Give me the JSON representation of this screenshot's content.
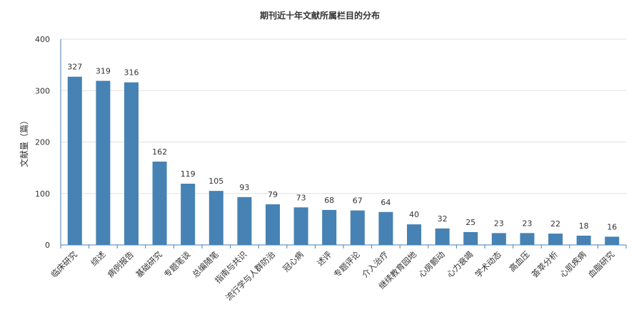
{
  "chart_data": {
    "type": "bar",
    "title": "期刊近十年文献所属栏目的分布",
    "xlabel": "",
    "ylabel": "文献量（篇）",
    "ylim": [
      0,
      400
    ],
    "yticks": [
      0,
      100,
      200,
      300,
      400
    ],
    "grid": true,
    "bar_color": "#4682b4",
    "categories": [
      "临床研究",
      "综述",
      "病例报告",
      "基础研究",
      "专题笔谈",
      "总编随笔",
      "指南与共识",
      "流行学与人群防治",
      "冠心病",
      "述评",
      "专题评论",
      "介入治疗",
      "继续教育园地",
      "心房颤动",
      "心力衰竭",
      "学术动态",
      "高血压",
      "荟萃分析",
      "心肌疾病",
      "血脂研究"
    ],
    "values": [
      327,
      319,
      316,
      162,
      119,
      105,
      93,
      79,
      73,
      68,
      67,
      64,
      40,
      32,
      25,
      23,
      23,
      22,
      18,
      16
    ]
  }
}
